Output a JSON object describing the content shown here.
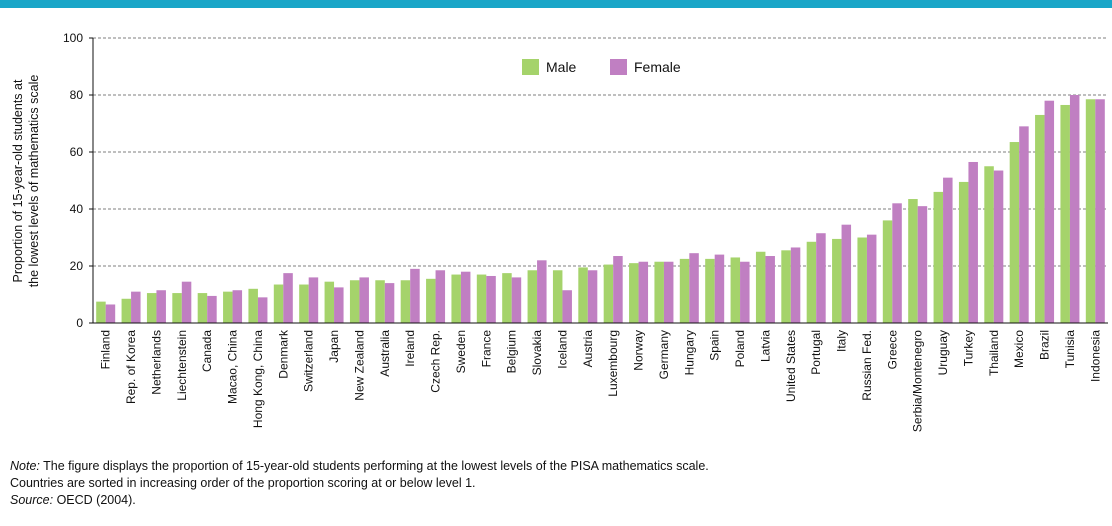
{
  "chart_data": {
    "type": "bar",
    "ylabel_line1": "Proportion of 15-year-old students at",
    "ylabel_line2": "the lowest levels of mathematics scale",
    "ylim": [
      0,
      100
    ],
    "yticks": [
      0,
      20,
      40,
      60,
      80,
      100
    ],
    "grid": true,
    "legend_position": "top-center",
    "categories": [
      "Finland",
      "Rep. of Korea",
      "Netherlands",
      "Liechtenstein",
      "Canada",
      "Macao, China",
      "Hong Kong, China",
      "Denmark",
      "Switzerland",
      "Japan",
      "New Zealand",
      "Australia",
      "Ireland",
      "Czech Rep.",
      "Sweden",
      "France",
      "Belgium",
      "Slovakia",
      "Iceland",
      "Austria",
      "Luxembourg",
      "Norway",
      "Germany",
      "Hungary",
      "Spain",
      "Poland",
      "Latvia",
      "United States",
      "Portugal",
      "Italy",
      "Russian Fed.",
      "Greece",
      "Serbia/Montenegro",
      "Uruguay",
      "Turkey",
      "Thailand",
      "Mexico",
      "Brazil",
      "Tunisia",
      "Indonesia"
    ],
    "series": [
      {
        "name": "Male",
        "color": "#a5d36b",
        "values": [
          7.5,
          8.5,
          10.5,
          10.5,
          10.5,
          11,
          12,
          13.5,
          13.5,
          14.5,
          15,
          15,
          15,
          15.5,
          17,
          17,
          17.5,
          18.5,
          18.5,
          19.5,
          20.5,
          21,
          21.5,
          22.5,
          22.5,
          23,
          25,
          25.5,
          28.5,
          29.5,
          30,
          36,
          43.5,
          46,
          49.5,
          55,
          63.5,
          73,
          76.5,
          78.5
        ]
      },
      {
        "name": "Female",
        "color": "#c07fc2",
        "values": [
          6.5,
          11,
          11.5,
          14.5,
          9.5,
          11.5,
          9,
          17.5,
          16,
          12.5,
          16,
          14,
          19,
          18.5,
          18,
          16.5,
          16,
          22,
          11.5,
          18.5,
          23.5,
          21.5,
          21.5,
          24.5,
          24,
          21.5,
          23.5,
          26.5,
          31.5,
          34.5,
          31,
          42,
          41,
          51,
          56.5,
          53.5,
          69,
          78,
          80,
          78.5
        ]
      }
    ]
  },
  "notes": {
    "note_label": "Note:",
    "note_text": " The figure displays the proportion of 15-year-old students performing at the lowest levels of the PISA mathematics scale.",
    "line2": "Countries are sorted in increasing order of the proportion scoring at or below level 1.",
    "source_label": "Source:",
    "source_text": " OECD (2004)."
  }
}
